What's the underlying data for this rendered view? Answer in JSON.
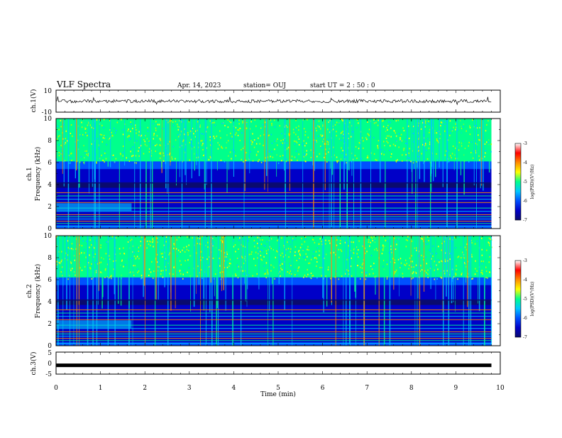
{
  "header": {
    "title": "VLF Spectra",
    "date": "Apr. 14, 2023",
    "station": "station= OUJ",
    "start": "start  UT =   2 : 50 : 0"
  },
  "colors": {
    "spectrum": [
      "#0a0a6e",
      "#0000c8",
      "#0050ff",
      "#00c8ff",
      "#00ff8c",
      "#b4ff00",
      "#ffff00",
      "#ff8c00",
      "#ff0000",
      "#ffffff"
    ],
    "trace": "#000000"
  },
  "chart_data": [
    {
      "type": "line",
      "name": "ch1-waveform",
      "ylabel": "ch.1(V)",
      "ylim": [
        -10,
        10
      ],
      "yticks": [
        "10",
        "-10"
      ],
      "xlim": [
        0,
        10
      ],
      "baseline": 0,
      "extent": [
        0,
        9.8
      ]
    },
    {
      "type": "heatmap",
      "name": "ch1-spectrogram",
      "ylabel_top": "ch.1",
      "ylabel": "Frequency (kHz)",
      "ylim": [
        0,
        10
      ],
      "yticks": [
        "10",
        "8",
        "6",
        "4",
        "2",
        "0"
      ],
      "xlim": [
        0,
        10
      ],
      "extent": [
        0,
        9.8
      ],
      "colorbar": {
        "label": "log(PSD)(V²/Hz)",
        "range": [
          -7,
          -3
        ],
        "ticks": [
          "-3",
          "-4",
          "-5",
          "-6",
          "-7"
        ]
      }
    },
    {
      "type": "heatmap",
      "name": "ch2-spectrogram",
      "ylabel_top": "ch.2",
      "ylabel": "Frequency (kHz)",
      "ylim": [
        0,
        10
      ],
      "yticks": [
        "10",
        "8",
        "6",
        "4",
        "2",
        "0"
      ],
      "xlim": [
        0,
        10
      ],
      "extent": [
        0,
        9.8
      ],
      "colorbar": {
        "label": "log(PSD)(V²/Hz)",
        "range": [
          -7,
          -3
        ],
        "ticks": [
          "-3",
          "-4",
          "-5",
          "-6",
          "-7"
        ]
      }
    },
    {
      "type": "line",
      "name": "ch3-waveform",
      "ylabel": "ch.3(V)",
      "ylim": [
        -5,
        5
      ],
      "yticks": [
        "5",
        "0",
        "-5"
      ],
      "xlim": [
        0,
        10
      ],
      "baseline": -1,
      "extent": [
        0,
        9.8
      ]
    }
  ],
  "xaxis": {
    "label": "Time (min)",
    "ticks": [
      "0",
      "1",
      "2",
      "3",
      "4",
      "5",
      "6",
      "7",
      "8",
      "9",
      "10"
    ]
  }
}
